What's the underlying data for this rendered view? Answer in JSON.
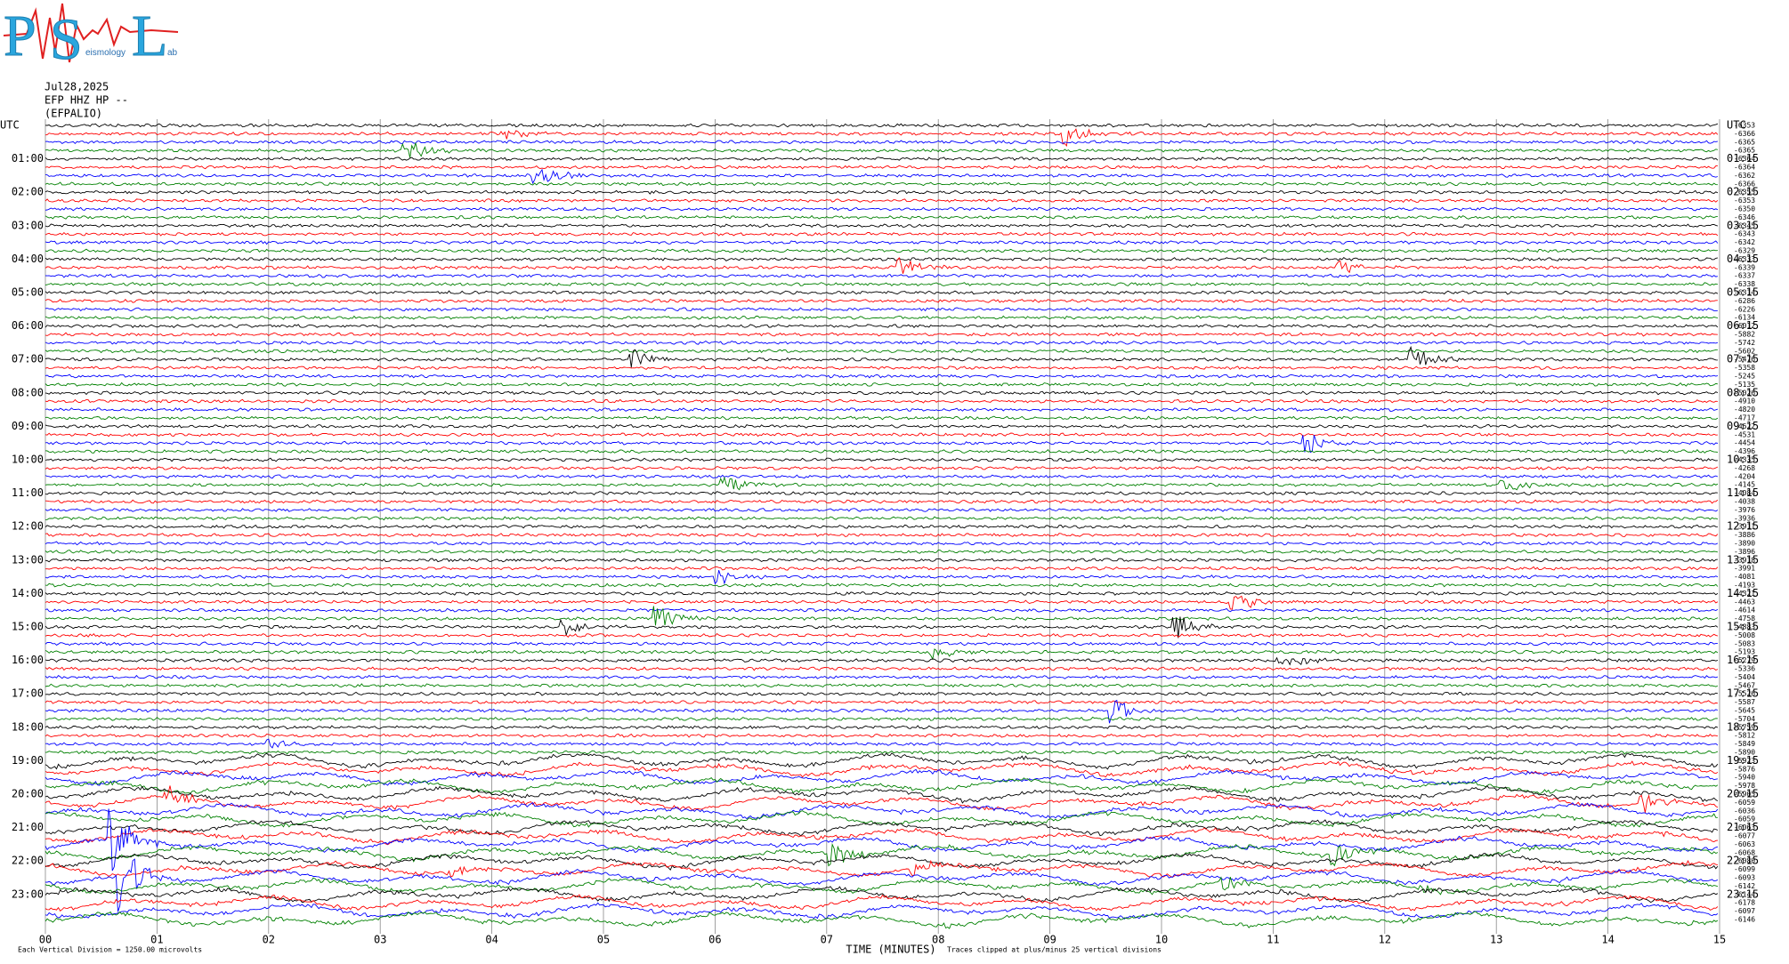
{
  "chart_data": {
    "type": "helicorder",
    "logo": {
      "letters": [
        "P",
        "S",
        "L"
      ],
      "small": [
        "eismology",
        "ab"
      ]
    },
    "date": "Jul28,2025",
    "station": "EFP HHZ HP --",
    "site": "(EFPALIO)",
    "left_labels": [
      "UTC",
      "01:00",
      "02:00",
      "03:00",
      "04:00",
      "05:00",
      "06:00",
      "07:00",
      "08:00",
      "09:00",
      "10:00",
      "11:00",
      "12:00",
      "13:00",
      "14:00",
      "15:00",
      "16:00",
      "17:00",
      "18:00",
      "19:00",
      "20:00",
      "21:00",
      "22:00",
      "23:00"
    ],
    "right_labels": [
      "UTC",
      "01:15",
      "02:15",
      "03:15",
      "04:15",
      "05:15",
      "06:15",
      "07:15",
      "08:15",
      "09:15",
      "10:15",
      "11:15",
      "12:15",
      "13:15",
      "14:15",
      "15:15",
      "16:15",
      "17:15",
      "18:15",
      "19:15",
      "20:15",
      "21:15",
      "22:15",
      "23:15"
    ],
    "offsets": [
      -6353,
      -6366,
      -6365,
      -6365,
      -6364,
      -6364,
      -6362,
      -6366,
      -6355,
      -6353,
      -6350,
      -6346,
      -6345,
      -6343,
      -6342,
      -6329,
      -6333,
      -6339,
      -6337,
      -6338,
      -6314,
      -6286,
      -6226,
      -6134,
      -6012,
      -5882,
      -5742,
      -5602,
      -5476,
      -5358,
      -5245,
      -5135,
      -5026,
      -4910,
      -4820,
      -4717,
      -4622,
      -4531,
      -4454,
      -4396,
      -4335,
      -4268,
      -4204,
      -4145,
      -4084,
      -4038,
      -3976,
      -3936,
      -3911,
      -3886,
      -3890,
      -3896,
      -3918,
      -3991,
      -4081,
      -4193,
      -4321,
      -4463,
      -4614,
      -4758,
      -4883,
      -5008,
      -5083,
      -5193,
      -5279,
      -5336,
      -5404,
      -5467,
      -5526,
      -5587,
      -5645,
      -5704,
      -5759,
      -5812,
      -5849,
      -5890,
      -5923,
      -5876,
      -5940,
      -5978,
      -5905,
      -6059,
      -6036,
      -6059,
      -6063,
      -6077,
      -6063,
      -6068,
      -6080,
      -6099,
      -6093,
      -6142,
      -6144,
      -6178,
      -6097,
      -6146
    ],
    "colors": [
      "#000000",
      "#ff0000",
      "#0000ff",
      "#008000"
    ],
    "xlim": [
      0,
      15
    ],
    "xticks": [
      {
        "value": 0,
        "label": "00"
      },
      {
        "value": 1,
        "label": "01"
      },
      {
        "value": 2,
        "label": "02"
      },
      {
        "value": 3,
        "label": "03"
      },
      {
        "value": 4,
        "label": "04"
      },
      {
        "value": 5,
        "label": "05"
      },
      {
        "value": 6,
        "label": "06"
      },
      {
        "value": 7,
        "label": "07"
      },
      {
        "value": 8,
        "label": "08"
      },
      {
        "value": 9,
        "label": "09"
      },
      {
        "value": 10,
        "label": "10"
      },
      {
        "value": 11,
        "label": "11"
      },
      {
        "value": 12,
        "label": "12"
      },
      {
        "value": 13,
        "label": "13"
      },
      {
        "value": 14,
        "label": "14"
      },
      {
        "value": 15,
        "label": "15"
      }
    ],
    "xlabel": "TIME (MINUTES)",
    "clip_note": "Traces clipped at plus/minus 25 vertical divisions",
    "scale_note": "Each Vertical Division = 1250.00 microvolts",
    "grid": true
  }
}
